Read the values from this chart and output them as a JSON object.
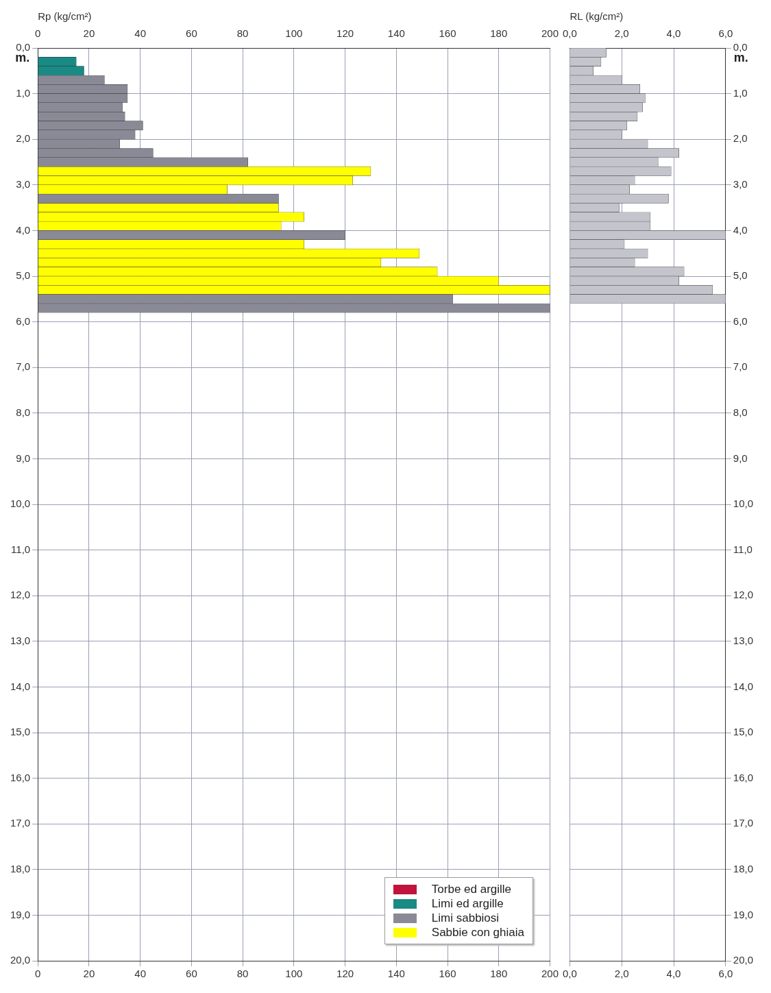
{
  "chart_data": [
    {
      "type": "bar",
      "orientation": "horizontal",
      "x2label": "Rp (kg/cm²)",
      "annotations": [
        "m."
      ],
      "x": [
        0.3,
        0.5,
        0.7,
        0.9,
        1.1,
        1.3,
        1.5,
        1.7,
        1.9,
        2.1,
        2.3,
        2.5,
        2.7,
        2.9,
        3.1,
        3.3,
        3.5,
        3.7,
        3.9,
        4.1,
        4.3,
        4.5,
        4.7,
        4.9,
        5.1,
        5.3,
        5.5,
        5.7
      ],
      "series": [
        {
          "name": "Torbe ed argille",
          "color": "#c0143c",
          "values": [
            null,
            null,
            null,
            null,
            null,
            null,
            null,
            null,
            null,
            null,
            null,
            null,
            null,
            null,
            null,
            null,
            null,
            null,
            null,
            null,
            null,
            null,
            null,
            null,
            null,
            null,
            null,
            null
          ]
        },
        {
          "name": "Limi ed argille",
          "color": "#1a8a85",
          "values": [
            15,
            18,
            null,
            null,
            null,
            null,
            null,
            null,
            null,
            null,
            null,
            null,
            null,
            null,
            null,
            null,
            null,
            null,
            null,
            null,
            null,
            null,
            null,
            null,
            null,
            null,
            null,
            null
          ]
        },
        {
          "name": "Limi sabbiosi",
          "color": "#8a8a96",
          "values": [
            null,
            null,
            26,
            35,
            35,
            33,
            34,
            41,
            38,
            32,
            45,
            82,
            null,
            null,
            null,
            94,
            null,
            null,
            null,
            120,
            null,
            null,
            null,
            null,
            null,
            null,
            162,
            200
          ]
        },
        {
          "name": "Sabbie con ghiaia",
          "color": "#ffff00",
          "values": [
            null,
            null,
            null,
            null,
            null,
            null,
            null,
            null,
            null,
            null,
            null,
            null,
            130,
            123,
            74,
            null,
            94,
            104,
            95,
            null,
            104,
            149,
            134,
            156,
            180,
            200,
            null,
            null
          ]
        }
      ],
      "xlim": [
        0,
        200
      ],
      "xticks": [
        0,
        20,
        40,
        60,
        80,
        100,
        120,
        140,
        160,
        180,
        200
      ],
      "x2lim": [
        0,
        200
      ],
      "x2ticks": [
        0,
        20,
        40,
        60,
        80,
        100,
        120,
        140,
        160,
        180,
        200
      ],
      "ylim": [
        20,
        0
      ],
      "yticks": [
        {
          "value": 0,
          "label": "0,0"
        },
        {
          "value": 1,
          "label": "1,0"
        },
        {
          "value": 2,
          "label": "2,0"
        },
        {
          "value": 3,
          "label": "3,0"
        },
        {
          "value": 4,
          "label": "4,0"
        },
        {
          "value": 5,
          "label": "5,0"
        },
        {
          "value": 6,
          "label": "6,0"
        },
        {
          "value": 7,
          "label": "7,0"
        },
        {
          "value": 8,
          "label": "8,0"
        },
        {
          "value": 9,
          "label": "9,0"
        },
        {
          "value": 10,
          "label": "10,0"
        },
        {
          "value": 11,
          "label": "11,0"
        },
        {
          "value": 12,
          "label": "12,0"
        },
        {
          "value": 13,
          "label": "13,0"
        },
        {
          "value": 14,
          "label": "14,0"
        },
        {
          "value": 15,
          "label": "15,0"
        },
        {
          "value": 16,
          "label": "16,0"
        },
        {
          "value": 17,
          "label": "17,0"
        },
        {
          "value": 18,
          "label": "18,0"
        },
        {
          "value": 19,
          "label": "19,0"
        },
        {
          "value": 20,
          "label": "20,0"
        }
      ],
      "grid": true,
      "legend": "bottom right"
    },
    {
      "type": "bar",
      "orientation": "horizontal",
      "x2label": "RL (kg/cm²)",
      "annotations": [
        "m."
      ],
      "x": [
        0.1,
        0.3,
        0.5,
        0.7,
        0.9,
        1.1,
        1.3,
        1.5,
        1.7,
        1.9,
        2.1,
        2.3,
        2.5,
        2.7,
        2.9,
        3.1,
        3.3,
        3.5,
        3.7,
        3.9,
        4.1,
        4.3,
        4.5,
        4.7,
        4.9,
        5.1,
        5.3,
        5.5
      ],
      "series": [
        {
          "color": "#c4c4cc",
          "values": [
            1.4,
            1.2,
            0.9,
            2.0,
            2.7,
            2.9,
            2.8,
            2.6,
            2.2,
            2.0,
            3.0,
            4.2,
            3.4,
            3.9,
            2.5,
            2.3,
            3.8,
            1.9,
            3.1,
            3.1,
            6.0,
            2.1,
            3.0,
            2.5,
            4.4,
            4.2,
            5.5,
            6.0
          ]
        }
      ],
      "xlim": [
        0,
        6
      ],
      "xticks": [
        {
          "value": 0,
          "label": "0,0"
        },
        {
          "value": 2,
          "label": "2,0"
        },
        {
          "value": 4,
          "label": "4,0"
        },
        {
          "value": 6,
          "label": "6,0"
        }
      ],
      "x2lim": [
        0,
        6
      ],
      "x2ticks": [
        {
          "value": 0,
          "label": "0,0"
        },
        {
          "value": 2,
          "label": "2,0"
        },
        {
          "value": 4,
          "label": "4,0"
        },
        {
          "value": 6,
          "label": "6,0"
        }
      ],
      "ylim": [
        20,
        0
      ],
      "yticks": [
        {
          "value": 0,
          "label": "0,0"
        },
        {
          "value": 1,
          "label": "1,0"
        },
        {
          "value": 2,
          "label": "2,0"
        },
        {
          "value": 3,
          "label": "3,0"
        },
        {
          "value": 4,
          "label": "4,0"
        },
        {
          "value": 5,
          "label": "5,0"
        },
        {
          "value": 6,
          "label": "6,0"
        },
        {
          "value": 7,
          "label": "7,0"
        },
        {
          "value": 8,
          "label": "8,0"
        },
        {
          "value": 9,
          "label": "9,0"
        },
        {
          "value": 10,
          "label": "10,0"
        },
        {
          "value": 11,
          "label": "11,0"
        },
        {
          "value": 12,
          "label": "12,0"
        },
        {
          "value": 13,
          "label": "13,0"
        },
        {
          "value": 14,
          "label": "14,0"
        },
        {
          "value": 15,
          "label": "15,0"
        },
        {
          "value": 16,
          "label": "16,0"
        },
        {
          "value": 17,
          "label": "17,0"
        },
        {
          "value": 18,
          "label": "18,0"
        },
        {
          "value": 19,
          "label": "19,0"
        },
        {
          "value": 20,
          "label": "20,0"
        }
      ],
      "grid": true
    }
  ]
}
